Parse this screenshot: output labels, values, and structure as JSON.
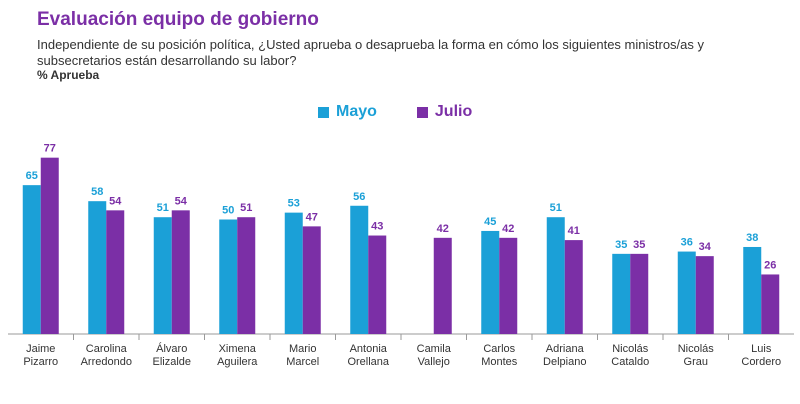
{
  "header": {
    "title": "Evaluación equipo de gobierno",
    "subtitle": "Independiente de su posición política, ¿Usted aprueba o desaprueba la forma en cómo los siguientes ministros/as y subsecretarios están desarrollando su labor?",
    "metric": "% Aprueba"
  },
  "colors": {
    "mayo": "#1ba0d7",
    "julio": "#7b2fa6",
    "axis": "#9a9a9a",
    "label_text": "#333333"
  },
  "chart_data": {
    "type": "bar",
    "categories": [
      [
        "Jaime",
        "Pizarro"
      ],
      [
        "Carolina",
        "Arredondo"
      ],
      [
        "Álvaro",
        "Elizalde"
      ],
      [
        "Ximena",
        "Aguilera"
      ],
      [
        "Mario",
        "Marcel"
      ],
      [
        "Antonia",
        "Orellana"
      ],
      [
        "Camila",
        "Vallejo"
      ],
      [
        "Carlos",
        "Montes"
      ],
      [
        "Adriana",
        "Delpiano"
      ],
      [
        "Nicolás",
        "Cataldo"
      ],
      [
        "Nicolás",
        "Grau"
      ],
      [
        "Luis",
        "Cordero"
      ]
    ],
    "series": [
      {
        "name": "Mayo",
        "values": [
          65,
          58,
          51,
          50,
          53,
          56,
          null,
          45,
          51,
          35,
          36,
          38
        ]
      },
      {
        "name": "Julio",
        "values": [
          77,
          54,
          54,
          51,
          47,
          43,
          42,
          42,
          41,
          35,
          34,
          26
        ]
      }
    ],
    "ylim": [
      0,
      80
    ],
    "grid": false,
    "legend_position": "top"
  }
}
